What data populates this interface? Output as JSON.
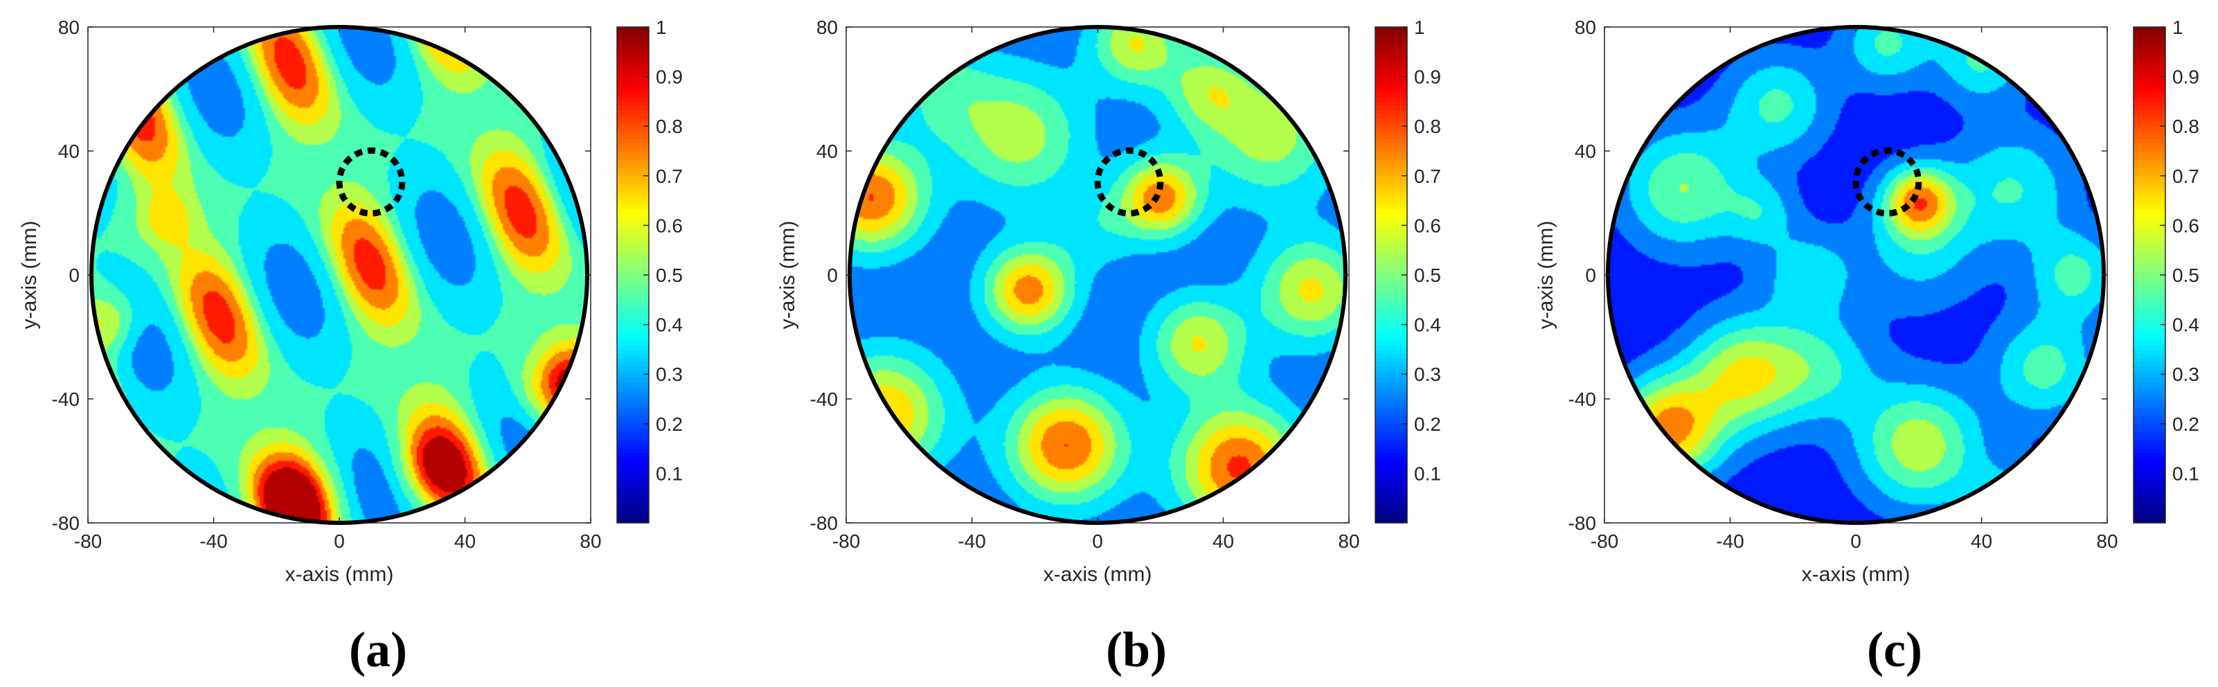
{
  "chart_data": [
    {
      "type": "heatmap",
      "panel_label": "(a)",
      "xlabel": "x-axis (mm)",
      "ylabel": "y-axis (mm)",
      "xlim": [
        -80,
        80
      ],
      "ylim": [
        -80,
        80
      ],
      "x_ticks": [
        "-80",
        "-40",
        "0",
        "40",
        "80"
      ],
      "y_ticks": [
        "-80",
        "-40",
        "0",
        "40",
        "80"
      ],
      "colorbar": {
        "range": [
          0,
          1
        ],
        "ticks": [
          "0.1",
          "0.2",
          "0.3",
          "0.4",
          "0.5",
          "0.6",
          "0.7",
          "0.8",
          "0.9",
          "1"
        ],
        "colormap": "jet"
      },
      "domain_circle": {
        "cx": 0,
        "cy": 0,
        "r": 80
      },
      "inclusion_circle": {
        "cx": 10,
        "cy": 30,
        "r": 10,
        "style": "dashed"
      },
      "field": {
        "kind": "stripes",
        "kx": 0.115,
        "ky": 0.045,
        "phase": 0.3,
        "mod_ky": 0.085,
        "base": 0.42,
        "amp": 0.32,
        "peaks": [
          {
            "x": -16,
            "y": -72,
            "s": 10,
            "a": 0.38
          },
          {
            "x": 70,
            "y": -37,
            "s": 9,
            "a": 0.38
          },
          {
            "x": -55,
            "y": 18,
            "s": 7,
            "a": 0.22
          },
          {
            "x": -73,
            "y": -15,
            "s": 7,
            "a": 0.25
          },
          {
            "x": 30,
            "y": -62,
            "s": 8,
            "a": 0.25
          }
        ]
      }
    },
    {
      "type": "heatmap",
      "panel_label": "(b)",
      "xlabel": "x-axis (mm)",
      "ylabel": "y-axis (mm)",
      "xlim": [
        -80,
        80
      ],
      "ylim": [
        -80,
        80
      ],
      "x_ticks": [
        "-80",
        "-40",
        "0",
        "40",
        "80"
      ],
      "y_ticks": [
        "-80",
        "-40",
        "0",
        "40",
        "80"
      ],
      "colorbar": {
        "range": [
          0,
          1
        ],
        "ticks": [
          "0.1",
          "0.2",
          "0.3",
          "0.4",
          "0.5",
          "0.6",
          "0.7",
          "0.8",
          "0.9",
          "1"
        ],
        "colormap": "jet"
      },
      "domain_circle": {
        "cx": 0,
        "cy": 0,
        "r": 80
      },
      "inclusion_circle": {
        "cx": 10,
        "cy": 30,
        "r": 10,
        "style": "dashed"
      },
      "field": {
        "kind": "blobs",
        "base": 0.2,
        "peaks": [
          {
            "x": -72,
            "y": 25,
            "s": 12,
            "a": 0.6
          },
          {
            "x": 20,
            "y": 25,
            "s": 9,
            "a": 0.55
          },
          {
            "x": -22,
            "y": -5,
            "s": 10,
            "a": 0.55
          },
          {
            "x": -10,
            "y": -55,
            "s": 13,
            "a": 0.6
          },
          {
            "x": 45,
            "y": -62,
            "s": 14,
            "a": 0.62
          },
          {
            "x": -68,
            "y": -45,
            "s": 14,
            "a": 0.5
          },
          {
            "x": 32,
            "y": -22,
            "s": 11,
            "a": 0.4
          },
          {
            "x": 68,
            "y": -5,
            "s": 12,
            "a": 0.42
          },
          {
            "x": -25,
            "y": 45,
            "s": 15,
            "a": 0.35
          },
          {
            "x": 55,
            "y": 45,
            "s": 15,
            "a": 0.35
          },
          {
            "x": 12,
            "y": 75,
            "s": 10,
            "a": 0.4
          },
          {
            "x": 35,
            "y": 60,
            "s": 10,
            "a": 0.3
          },
          {
            "x": 0,
            "y": 15,
            "s": 10,
            "a": 0.15
          },
          {
            "x": -50,
            "y": 60,
            "s": 12,
            "a": 0.2
          }
        ]
      }
    },
    {
      "type": "heatmap",
      "panel_label": "(c)",
      "xlabel": "x-axis (mm)",
      "ylabel": "y-axis (mm)",
      "xlim": [
        -80,
        80
      ],
      "ylim": [
        -80,
        80
      ],
      "x_ticks": [
        "-80",
        "-40",
        "0",
        "40",
        "80"
      ],
      "y_ticks": [
        "-80",
        "-40",
        "0",
        "40",
        "80"
      ],
      "colorbar": {
        "range": [
          0,
          1
        ],
        "ticks": [
          "0.1",
          "0.2",
          "0.3",
          "0.4",
          "0.5",
          "0.6",
          "0.7",
          "0.8",
          "0.9",
          "1"
        ],
        "colormap": "jet"
      },
      "domain_circle": {
        "cx": 0,
        "cy": 0,
        "r": 80
      },
      "inclusion_circle": {
        "cx": 10,
        "cy": 30,
        "r": 10,
        "style": "dashed"
      },
      "field": {
        "kind": "blobs",
        "base": 0.12,
        "peaks": [
          {
            "x": -60,
            "y": -50,
            "s": 12,
            "a": 0.62
          },
          {
            "x": 20,
            "y": 24,
            "s": 8,
            "a": 0.55
          },
          {
            "x": -35,
            "y": -32,
            "s": 13,
            "a": 0.48
          },
          {
            "x": 20,
            "y": -55,
            "s": 14,
            "a": 0.45
          },
          {
            "x": -55,
            "y": 28,
            "s": 14,
            "a": 0.38
          },
          {
            "x": -25,
            "y": 55,
            "s": 12,
            "a": 0.3
          },
          {
            "x": 50,
            "y": 28,
            "s": 14,
            "a": 0.28
          },
          {
            "x": 60,
            "y": -30,
            "s": 12,
            "a": 0.32
          },
          {
            "x": -10,
            "y": -30,
            "s": 12,
            "a": 0.25
          },
          {
            "x": 70,
            "y": 0,
            "s": 10,
            "a": 0.3
          },
          {
            "x": 10,
            "y": 75,
            "s": 10,
            "a": 0.3
          },
          {
            "x": 40,
            "y": 70,
            "s": 10,
            "a": 0.3
          },
          {
            "x": -15,
            "y": 0,
            "s": 10,
            "a": 0.25
          },
          {
            "x": 20,
            "y": 8,
            "s": 14,
            "a": 0.22
          },
          {
            "x": 50,
            "y": -75,
            "s": 10,
            "a": 0.25
          },
          {
            "x": -30,
            "y": 20,
            "s": 8,
            "a": 0.2
          }
        ]
      }
    }
  ]
}
